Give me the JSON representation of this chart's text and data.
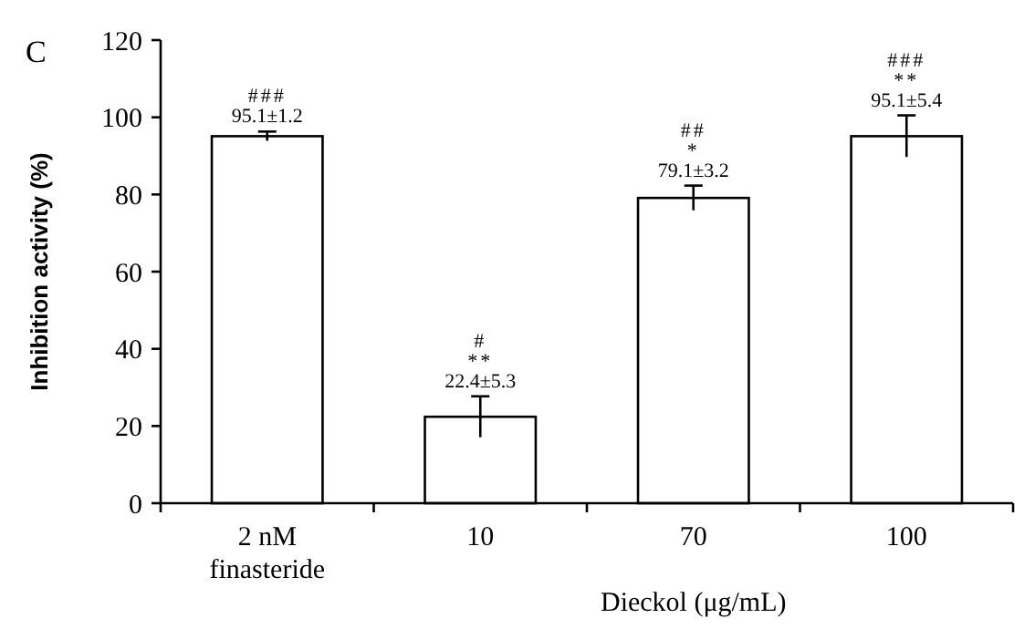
{
  "chart_data": {
    "type": "bar",
    "categories": [
      "2 nM finasteride",
      "10",
      "70",
      "100"
    ],
    "values": [
      95.1,
      22.4,
      79.1,
      95.1
    ],
    "errors": [
      1.2,
      5.3,
      3.2,
      5.4
    ],
    "color": "#ffffff",
    "value_labels": [
      "95.1±1.2",
      "22.4±5.3",
      "79.1±3.2",
      "95.1±5.4"
    ],
    "xlabel": "Dieckol (μg/mL)",
    "ylabel": "Inhibition activity (%)",
    "ylim": [
      0,
      120
    ],
    "yticks": [
      0,
      20,
      40,
      60,
      80,
      100,
      120
    ],
    "grid": false,
    "annotations": [
      "C",
      {
        "text": "###",
        "x": "2 nM finasteride",
        "y": 95.1
      },
      {
        "text": "**",
        "x": "10",
        "y": 22.4
      },
      "#",
      {
        "text": "*",
        "x": "70",
        "y": 79.1
      },
      {
        "text": "##",
        "x": "70",
        "y": 79.1
      },
      {
        "text": "**",
        "x": "100",
        "y": 95.1
      },
      "###"
    ]
  }
}
